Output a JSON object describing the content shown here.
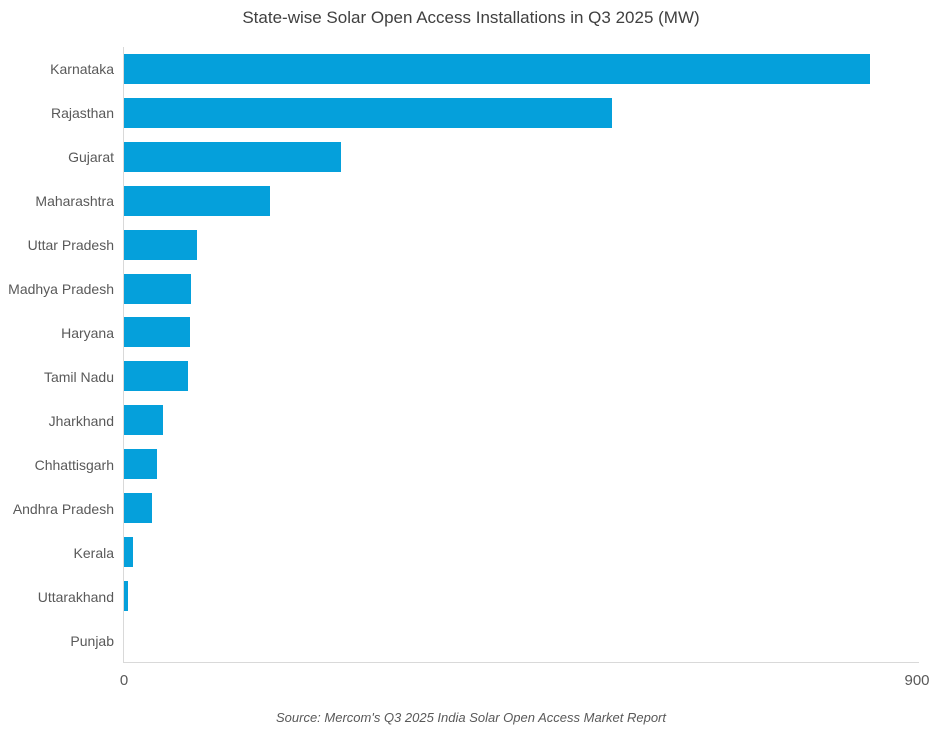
{
  "source": "Source: Mercom's Q3 2025 India Solar Open Access Market Report",
  "colors": {
    "bar": "#05a0db",
    "axis_line": "#d9d9d9",
    "label_text": "#595959",
    "title_text": "#404040"
  },
  "chart_data": {
    "type": "bar",
    "orientation": "horizontal",
    "title": "State-wise Solar Open Access Installations in Q3 2025 (MW)",
    "xlabel": "",
    "ylabel": "",
    "categories": [
      "Karnataka",
      "Rajasthan",
      "Gujarat",
      "Maharashtra",
      "Uttar Pradesh",
      "Madhya Pradesh",
      "Haryana",
      "Tamil Nadu",
      "Jharkhand",
      "Chhattisgarh",
      "Andhra Pradesh",
      "Kerala",
      "Uttarakhand",
      "Punjab"
    ],
    "values": [
      845,
      552,
      246,
      165,
      83,
      76,
      75,
      72,
      44,
      37,
      32,
      10,
      4,
      0
    ],
    "unit": "MW",
    "xlim": [
      0,
      900
    ],
    "xticks": [
      "0",
      "900"
    ],
    "grid": false,
    "legend": false
  }
}
